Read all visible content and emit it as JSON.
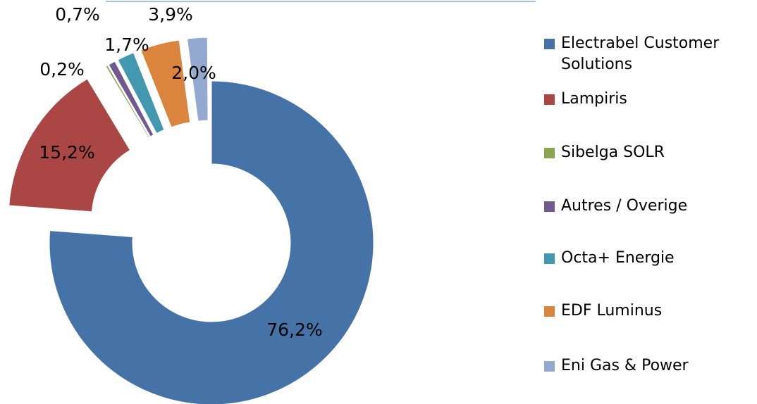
{
  "chart_data": {
    "type": "donut",
    "categories": [
      "Electrabel Customer Solutions",
      "Lampiris",
      "Sibelga SOLR",
      "Autres / Overige",
      "Octa+ Energie",
      "EDF Luminus",
      "Eni Gas & Power"
    ],
    "values": [
      76.2,
      15.2,
      0.2,
      0.7,
      1.7,
      3.9,
      2.0
    ],
    "value_labels": [
      "76,2%",
      "15,2%",
      "0,2%",
      "0,7%",
      "1,7%",
      "3,9%",
      "2,0%"
    ],
    "colors": [
      "#4572a7",
      "#aa4643",
      "#89a54e",
      "#71588f",
      "#4198af",
      "#db843d",
      "#93a9cf"
    ],
    "legend": "right"
  }
}
